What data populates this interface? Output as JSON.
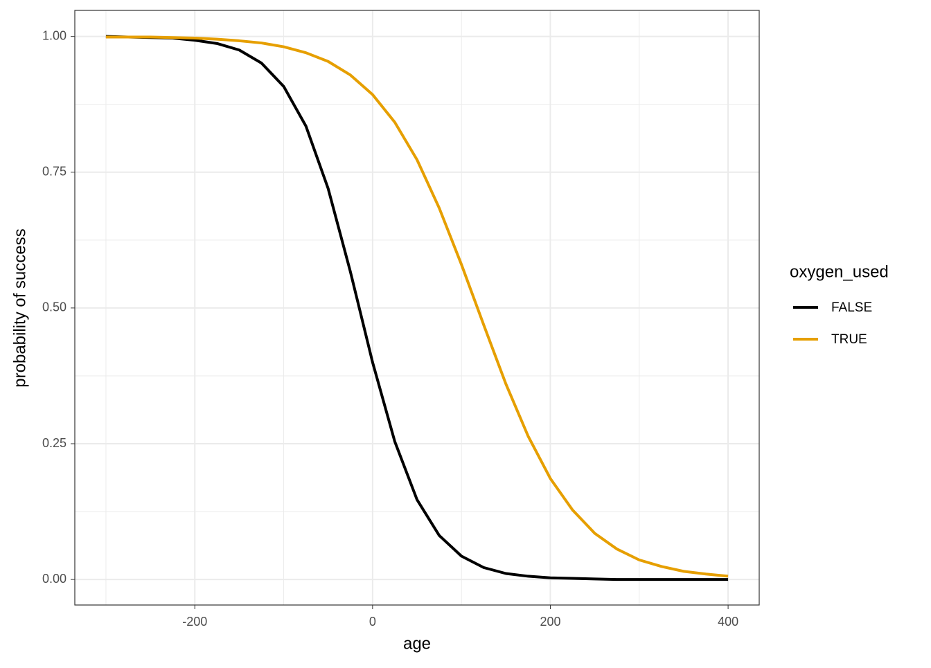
{
  "chart_data": {
    "type": "line",
    "x_label": "age",
    "y_label": "probability of success",
    "legend_title": "oxygen_used",
    "legend": "right",
    "grid": true,
    "x": [
      -300,
      -275,
      -250,
      -225,
      -200,
      -175,
      -150,
      -125,
      -100,
      -75,
      -50,
      -25,
      0,
      25,
      50,
      75,
      100,
      125,
      150,
      175,
      200,
      225,
      250,
      275,
      300,
      325,
      350,
      375,
      400
    ],
    "series": [
      {
        "name": "FALSE",
        "color": "#000000",
        "values": [
          1.0,
          0.999,
          0.998,
          0.997,
          0.993,
          0.987,
          0.975,
          0.951,
          0.908,
          0.835,
          0.72,
          0.567,
          0.4,
          0.254,
          0.147,
          0.081,
          0.043,
          0.022,
          0.011,
          0.006,
          0.003,
          0.002,
          0.001,
          0,
          0,
          0,
          0,
          0,
          0
        ]
      },
      {
        "name": "TRUE",
        "color": "#E69F00",
        "values": [
          0.999,
          0.999,
          0.999,
          0.998,
          0.997,
          0.995,
          0.992,
          0.988,
          0.981,
          0.97,
          0.954,
          0.929,
          0.893,
          0.842,
          0.773,
          0.684,
          0.58,
          0.469,
          0.36,
          0.264,
          0.186,
          0.128,
          0.085,
          0.056,
          0.036,
          0.024,
          0.015,
          0.01,
          0.006
        ]
      }
    ],
    "xlim": [
      -335,
      435
    ],
    "ylim": [
      -0.047,
      1.048
    ],
    "xticks": [
      -200,
      0,
      200,
      400
    ],
    "yticks": [
      {
        "value": 0,
        "label": "0.00"
      },
      {
        "value": 0.25,
        "label": "0.25"
      },
      {
        "value": 0.5,
        "label": "0.50"
      },
      {
        "value": 0.75,
        "label": "0.75"
      },
      {
        "value": 1,
        "label": "1.00"
      }
    ],
    "x_minor_grid": [
      -300,
      -100,
      100,
      300
    ],
    "y_minor_grid": [
      0.125,
      0.375,
      0.625,
      0.875
    ]
  }
}
